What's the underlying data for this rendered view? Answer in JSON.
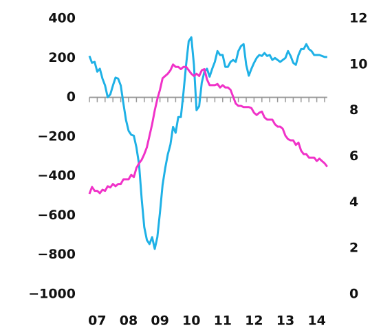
{
  "chart_data": {
    "type": "line",
    "categories": [
      null,
      null,
      null,
      "07",
      null,
      null,
      null,
      null,
      null,
      null,
      null,
      null,
      null,
      null,
      null,
      "08",
      null,
      null,
      null,
      null,
      null,
      null,
      null,
      null,
      null,
      null,
      null,
      "09",
      null,
      null,
      null,
      null,
      null,
      null,
      null,
      null,
      null,
      null,
      null,
      "10",
      null,
      null,
      null,
      null,
      null,
      null,
      null,
      null,
      null,
      null,
      null,
      "11",
      null,
      null,
      null,
      null,
      null,
      null,
      null,
      null,
      null,
      null,
      null,
      "12",
      null,
      null,
      null,
      null,
      null,
      null,
      null,
      null,
      null,
      null,
      null,
      "13",
      null,
      null,
      null,
      null,
      null,
      null,
      null,
      null,
      null,
      null,
      null,
      "14",
      null,
      null,
      null,
      null
    ],
    "series": [
      {
        "name": null,
        "color": "#1fb1e6",
        "axis": "y",
        "values": [
          210,
          175,
          180,
          130,
          145,
          95,
          60,
          0,
          15,
          60,
          100,
          95,
          60,
          -30,
          -115,
          -170,
          -190,
          -195,
          -255,
          -340,
          -515,
          -660,
          -725,
          -745,
          -710,
          -770,
          -710,
          -585,
          -445,
          -360,
          -290,
          -240,
          -150,
          -180,
          -100,
          -100,
          25,
          165,
          285,
          305,
          165,
          -65,
          -45,
          75,
          130,
          145,
          105,
          145,
          180,
          235,
          215,
          215,
          155,
          155,
          180,
          190,
          180,
          235,
          260,
          270,
          165,
          110,
          145,
          175,
          200,
          215,
          210,
          225,
          210,
          215,
          190,
          200,
          190,
          180,
          190,
          200,
          235,
          210,
          175,
          165,
          215,
          245,
          245,
          270,
          245,
          235,
          215,
          215,
          215,
          210,
          205,
          205
        ]
      },
      {
        "name": null,
        "color": "#f032c8",
        "axis": "y2",
        "values": [
          4.37,
          4.67,
          4.5,
          4.5,
          4.4,
          4.55,
          4.5,
          4.7,
          4.65,
          4.8,
          4.7,
          4.8,
          4.8,
          5.0,
          5.0,
          5.0,
          5.2,
          5.1,
          5.5,
          5.7,
          5.85,
          6.1,
          6.4,
          6.9,
          7.4,
          8.0,
          8.5,
          8.9,
          9.4,
          9.5,
          9.6,
          9.75,
          10.0,
          9.9,
          9.9,
          9.8,
          9.9,
          9.9,
          9.75,
          9.6,
          9.5,
          9.6,
          9.5,
          9.75,
          9.8,
          9.35,
          9.1,
          9.1,
          9.1,
          9.15,
          9.0,
          9.1,
          9.0,
          9.0,
          8.9,
          8.6,
          8.3,
          8.2,
          8.2,
          8.15,
          8.15,
          8.15,
          8.1,
          7.9,
          7.8,
          7.9,
          7.95,
          7.7,
          7.6,
          7.6,
          7.6,
          7.4,
          7.3,
          7.3,
          7.2,
          6.9,
          6.75,
          6.7,
          6.7,
          6.5,
          6.6,
          6.25,
          6.1,
          6.1,
          5.95,
          5.95,
          5.95,
          5.8,
          5.9,
          5.8,
          5.7,
          5.55
        ]
      }
    ],
    "ylim": [
      -1000,
      400
    ],
    "yticks": [
      {
        "value": -1000,
        "label": "−1000"
      },
      {
        "value": -800,
        "label": "−800"
      },
      {
        "value": -600,
        "label": "−600"
      },
      {
        "value": -400,
        "label": "−400"
      },
      {
        "value": -200,
        "label": "−200"
      },
      0,
      200,
      400
    ],
    "y2lim": [
      0,
      12
    ],
    "y2ticks": [
      0,
      2,
      4,
      6,
      8,
      10,
      12
    ]
  }
}
